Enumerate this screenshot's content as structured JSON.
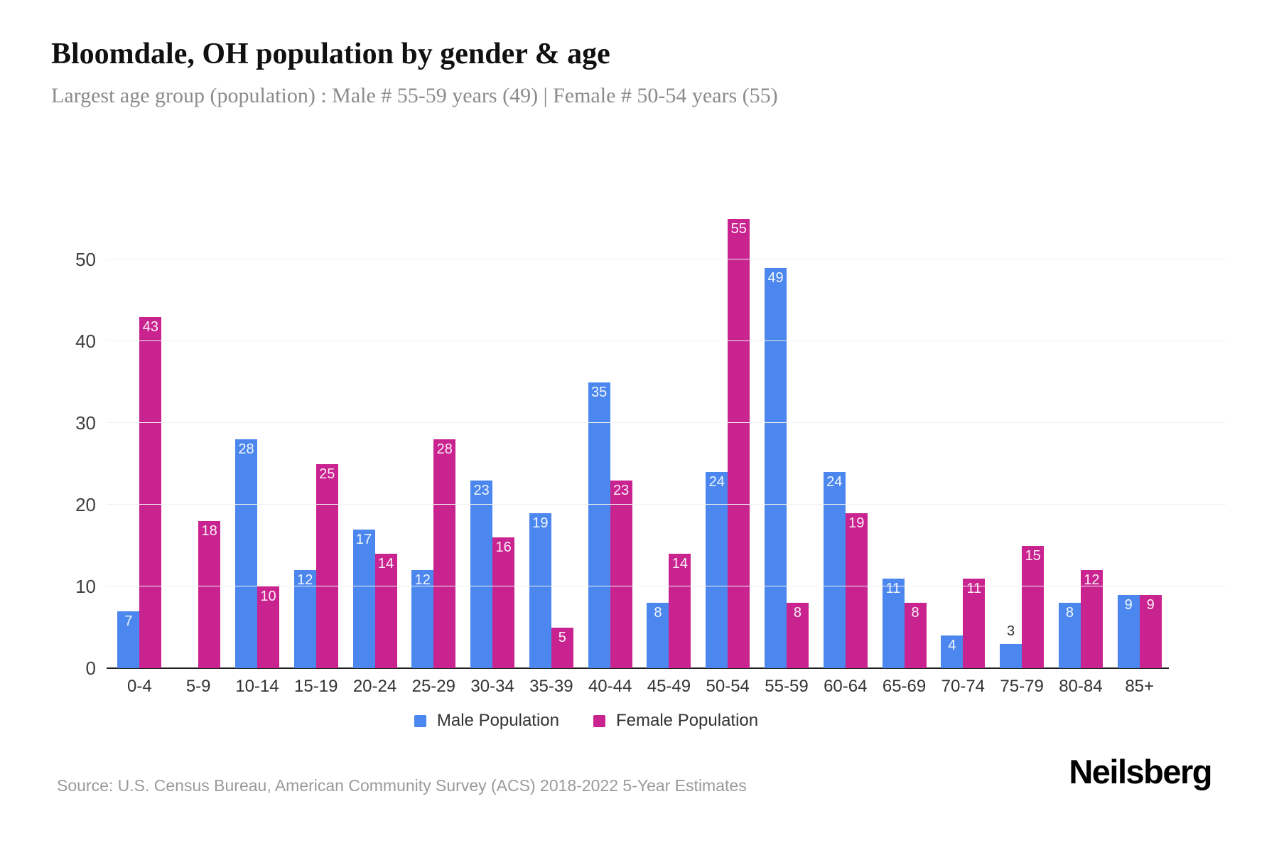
{
  "header": {
    "title": "Bloomdale, OH population by gender & age",
    "subtitle": "Largest age group (population) : Male # 55-59 years (49) | Female # 50-54 years (55)"
  },
  "footer": {
    "source": "Source: U.S. Census Bureau, American Community Survey (ACS) 2018-2022 5-Year Estimates",
    "logo": "Neilsberg"
  },
  "colors": {
    "male": "#4B87EE",
    "female": "#C9238F",
    "grid": "#f1f1f1",
    "axis_text": "#333333",
    "value_label_inside": "#ffffff",
    "value_label_outside": "#333333"
  },
  "chart_data": {
    "type": "bar",
    "title": "Bloomdale, OH population by gender & age",
    "xlabel": "",
    "ylabel": "",
    "categories": [
      "0-4",
      "5-9",
      "10-14",
      "15-19",
      "20-24",
      "25-29",
      "30-34",
      "35-39",
      "40-44",
      "45-49",
      "50-54",
      "55-59",
      "60-64",
      "65-69",
      "70-74",
      "75-79",
      "80-84",
      "85+"
    ],
    "series": [
      {
        "name": "Male Population",
        "color": "#4B87EE",
        "values": [
          7,
          0,
          28,
          12,
          17,
          12,
          23,
          19,
          35,
          8,
          24,
          49,
          24,
          11,
          4,
          3,
          8,
          9
        ]
      },
      {
        "name": "Female Population",
        "color": "#C9238F",
        "values": [
          43,
          18,
          10,
          25,
          14,
          28,
          16,
          5,
          23,
          14,
          55,
          8,
          19,
          8,
          11,
          15,
          12,
          9
        ]
      }
    ],
    "yticks": [
      0,
      10,
      20,
      30,
      40,
      50
    ],
    "ylim": [
      0,
      57
    ],
    "grid": true,
    "legend_position": "bottom"
  }
}
